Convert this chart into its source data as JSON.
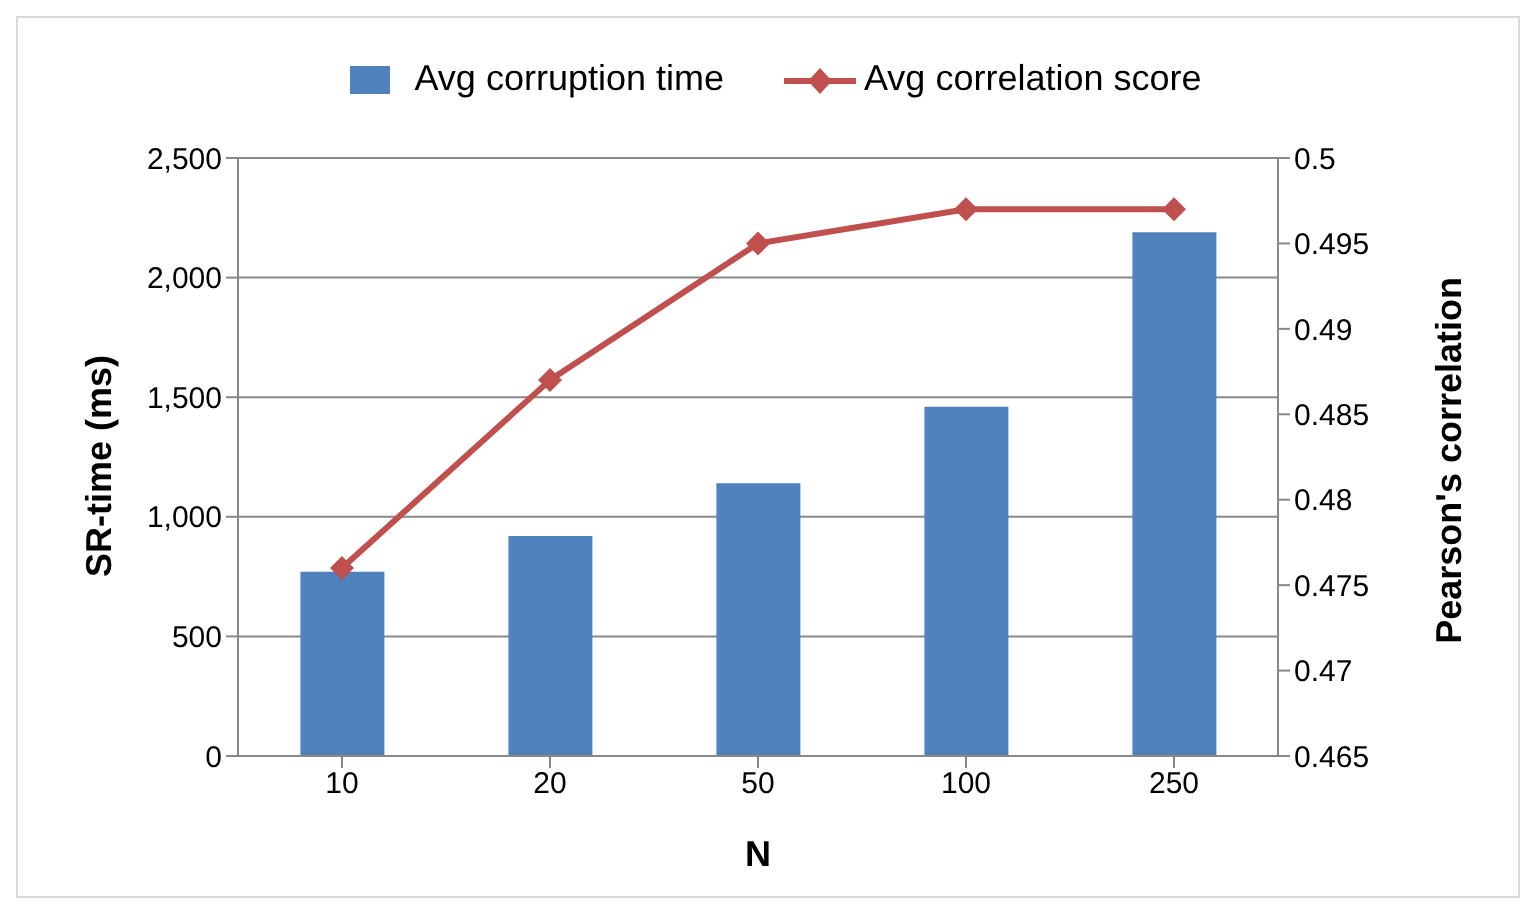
{
  "chart_data": {
    "type": "bar",
    "categories": [
      "10",
      "20",
      "50",
      "100",
      "250"
    ],
    "xlabel": "N",
    "ylabel": "SR-time (ms)",
    "y2label": "Pearson's correlation",
    "series": [
      {
        "name": "Avg corruption time",
        "color": "#4f81bd",
        "values": [
          770,
          920,
          1140,
          1460,
          2190
        ]
      },
      {
        "name": "Avg correlation score",
        "type": "line",
        "axis": "y2",
        "color": "#c0504d",
        "marker": "diamond",
        "values": [
          0.476,
          0.487,
          0.495,
          0.497,
          0.497
        ]
      }
    ],
    "ylim": [
      0,
      2500
    ],
    "yticks": [
      {
        "value": 0,
        "label": "0"
      },
      {
        "value": 500,
        "label": "500"
      },
      {
        "value": 1000,
        "label": "1,000"
      },
      {
        "value": 1500,
        "label": "1,500"
      },
      {
        "value": 2000,
        "label": "2,000"
      },
      {
        "value": 2500,
        "label": "2,500"
      }
    ],
    "y2lim": [
      0.465,
      0.5
    ],
    "y2ticks": [
      0.465,
      0.47,
      0.475,
      0.48,
      0.485,
      0.49,
      0.495,
      {
        "value": 0.5,
        "label": "0.5"
      }
    ],
    "grid": "y",
    "legend": "top"
  }
}
